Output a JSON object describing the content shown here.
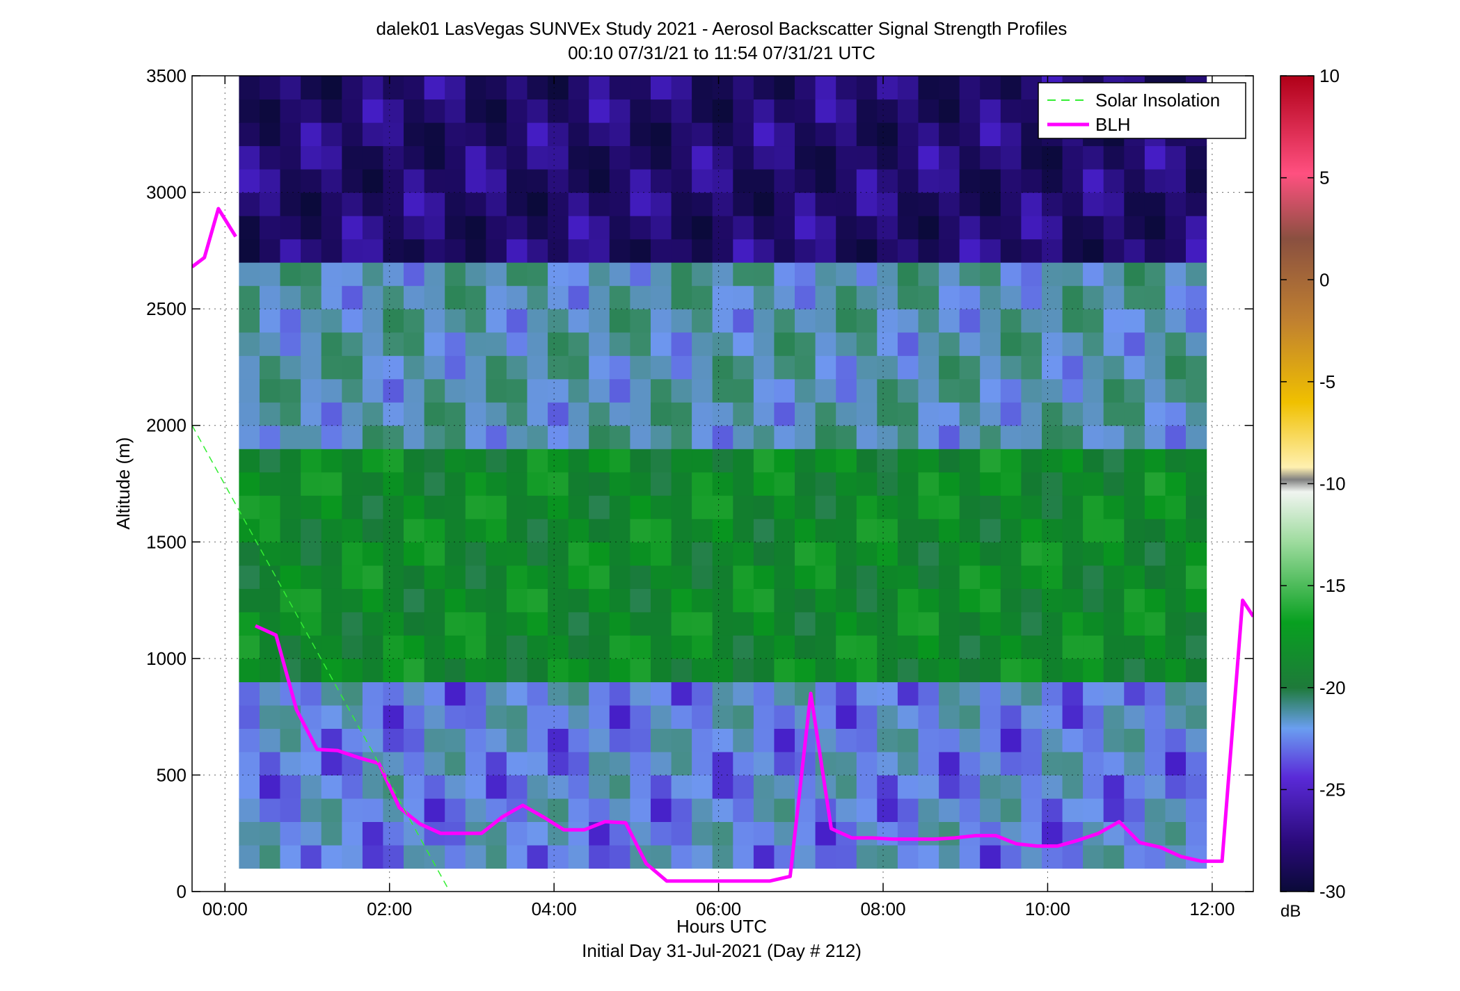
{
  "figure": {
    "title_line1": "dalek01 LasVegas SUNVEx Study 2021 - Aerosol Backscatter Signal Strength Profiles",
    "title_line2": "00:10 07/31/21 to 11:54 07/31/21  UTC",
    "xlabel": "Hours UTC",
    "xlabel2": "Initial Day 31-Jul-2021 (Day # 212)",
    "ylabel": "Altitude (m)",
    "colorbar_unit": "dB"
  },
  "legend": {
    "solar": "Solar Insolation",
    "blh": "BLH",
    "placement": "top-right"
  },
  "chart_data": {
    "type": "heatmap",
    "x_unit": "hours UTC",
    "xlim": [
      -0.4,
      12.5
    ],
    "ylim": [
      0,
      3500
    ],
    "x_ticks": [
      0,
      2,
      4,
      6,
      8,
      10,
      12
    ],
    "x_tick_labels": [
      "00:00",
      "02:00",
      "04:00",
      "06:00",
      "08:00",
      "10:00",
      "12:00"
    ],
    "y_ticks": [
      0,
      500,
      1000,
      1500,
      2000,
      2500,
      3000,
      3500
    ],
    "y_tick_labels": [
      "0",
      "500",
      "1000",
      "1500",
      "2000",
      "2500",
      "3000",
      "3500"
    ],
    "grid": true,
    "colorbar": {
      "range": [
        -30,
        10
      ],
      "ticks": [
        10,
        5,
        0,
        -5,
        -10,
        -15,
        -20,
        -25,
        -30
      ],
      "tick_labels": [
        "10",
        "5",
        "0",
        "-5",
        "-10",
        "-15",
        "-20",
        "-25",
        "-30"
      ],
      "unit": "dB"
    },
    "heatmap_coverage": {
      "x_range": [
        0.17,
        11.93
      ],
      "y_range": [
        100,
        3500
      ],
      "description_layers": [
        {
          "alt_range": [
            100,
            900
          ],
          "typical_dB": -24
        },
        {
          "alt_range": [
            900,
            1900
          ],
          "typical_dB": -19
        },
        {
          "alt_range": [
            1900,
            2700
          ],
          "typical_dB": -23
        },
        {
          "alt_range": [
            2700,
            3500
          ],
          "typical_dB": -28
        }
      ]
    },
    "series": [
      {
        "name": "BLH",
        "color": "#ff00ff",
        "segments": [
          {
            "x": [
              -0.4,
              -0.25,
              -0.08,
              0.13
            ],
            "y": [
              2680,
              2720,
              2930,
              2810
            ]
          },
          {
            "x": [
              0.37,
              0.62,
              0.87,
              1.12,
              1.37,
              1.62,
              1.87,
              2.12,
              2.37,
              2.62,
              2.87,
              3.12,
              3.37,
              3.62,
              3.87,
              4.12,
              4.37,
              4.62,
              4.87,
              5.12,
              5.37,
              5.62,
              5.87,
              6.12,
              6.37,
              6.62,
              6.87,
              7.12,
              7.37,
              7.62,
              7.87,
              8.12,
              8.37,
              8.62,
              8.87,
              9.12,
              9.37,
              9.62,
              9.87,
              10.12,
              10.37,
              10.62,
              10.87,
              11.12,
              11.37,
              11.62,
              11.87,
              12.12,
              12.37,
              12.5
            ],
            "y": [
              1140,
              1100,
              780,
              610,
              605,
              575,
              550,
              360,
              290,
              250,
              250,
              250,
              320,
              370,
              320,
              265,
              265,
              300,
              295,
              120,
              45,
              45,
              45,
              45,
              45,
              45,
              65,
              850,
              270,
              230,
              230,
              225,
              225,
              225,
              230,
              240,
              240,
              205,
              195,
              195,
              220,
              250,
              300,
              210,
              190,
              150,
              130,
              130,
              1250,
              1180
            ]
          }
        ]
      },
      {
        "name": "Solar Insolation",
        "color": "#33ee33",
        "style": "dashed",
        "x": [
          -0.4,
          2.7
        ],
        "y": [
          2000,
          20
        ]
      }
    ]
  }
}
